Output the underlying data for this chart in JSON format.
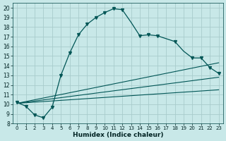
{
  "xlabel": "Humidex (Indice chaleur)",
  "bg_color": "#c8e8e8",
  "grid_color": "#a8cccc",
  "line_color": "#005555",
  "xlim": [
    -0.5,
    23.5
  ],
  "ylim": [
    8,
    20.5
  ],
  "xticks": [
    0,
    1,
    2,
    3,
    4,
    5,
    6,
    7,
    8,
    9,
    10,
    11,
    12,
    13,
    14,
    15,
    16,
    17,
    18,
    19,
    20,
    21,
    22,
    23
  ],
  "yticks": [
    8,
    9,
    10,
    11,
    12,
    13,
    14,
    15,
    16,
    17,
    18,
    19,
    20
  ],
  "curve_x": [
    0,
    1,
    2,
    3,
    4,
    5,
    6,
    7,
    8,
    9,
    10,
    11,
    12,
    13,
    14,
    15,
    16,
    17,
    18,
    19,
    20,
    21,
    22,
    23
  ],
  "curve_y": [
    10.2,
    9.8,
    8.9,
    8.6,
    9.7,
    13.0,
    15.3,
    17.2,
    18.3,
    19.0,
    19.5,
    19.9,
    19.8,
    18.5,
    17.1,
    17.2,
    17.1,
    16.8,
    16.5,
    15.5,
    14.8,
    14.8,
    13.8,
    13.2
  ],
  "marker_x": [
    0,
    1,
    2,
    3,
    4,
    5,
    6,
    7,
    8,
    9,
    10,
    11,
    12,
    14,
    15,
    16,
    18,
    20,
    21,
    22,
    23
  ],
  "marker_y": [
    10.2,
    9.8,
    8.9,
    8.6,
    9.7,
    13.0,
    15.3,
    17.2,
    18.3,
    19.0,
    19.5,
    19.9,
    19.8,
    17.1,
    17.2,
    17.1,
    16.5,
    14.8,
    14.8,
    13.8,
    13.2
  ],
  "diag_lines": [
    {
      "x0": 0,
      "y0": 10.1,
      "x1": 23,
      "y1": 14.3
    },
    {
      "x0": 0,
      "y0": 10.1,
      "x1": 23,
      "y1": 12.8
    },
    {
      "x0": 0,
      "y0": 10.1,
      "x1": 23,
      "y1": 11.5
    }
  ],
  "xtick_fontsize": 5.0,
  "ytick_fontsize": 5.5,
  "xlabel_fontsize": 6.5
}
